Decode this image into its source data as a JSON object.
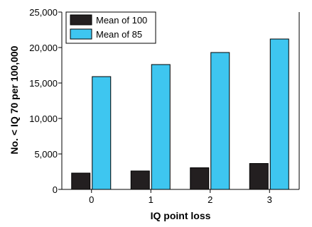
{
  "chart_data": {
    "type": "bar",
    "categories": [
      "0",
      "1",
      "2",
      "3"
    ],
    "series": [
      {
        "name": "Mean of 100",
        "values": [
          2300,
          2600,
          3050,
          3650
        ],
        "color": "#231f20"
      },
      {
        "name": "Mean of 85",
        "values": [
          15900,
          17600,
          19300,
          21200
        ],
        "color": "#3ec6f0"
      }
    ],
    "xlabel": "IQ point loss",
    "ylabel": "No. < IQ 70 per 100,000",
    "ylim": [
      0,
      25000
    ],
    "yticks": [
      0,
      5000,
      10000,
      15000,
      20000,
      25000
    ],
    "ytick_labels": [
      "0",
      "5,000",
      "10,000",
      "15,000",
      "20,000",
      "25,000"
    ],
    "grid": false,
    "legend_position": "top-left"
  }
}
